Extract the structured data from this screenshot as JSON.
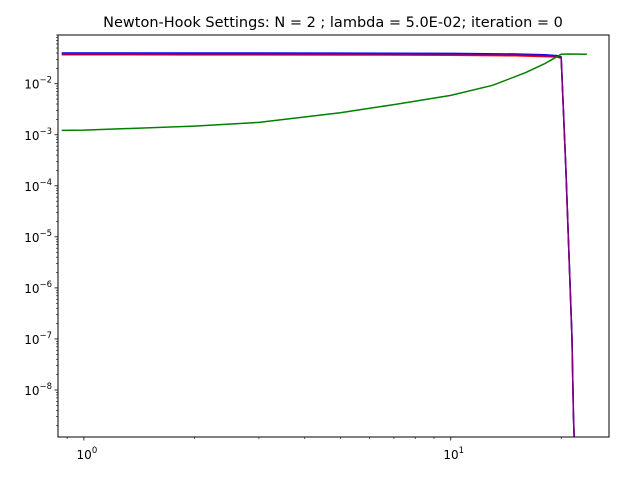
{
  "chart_data": {
    "type": "line",
    "title": "Newton-Hook Settings: N = 2 ; lambda = 5.0E-02; iteration = 0",
    "xlabel": "",
    "ylabel": "",
    "xscale": "log",
    "yscale": "log",
    "xlim": [
      0.85,
      27
    ],
    "ylim": [
      1.2e-09,
      0.09
    ],
    "grid": false,
    "x_ticks": [
      {
        "value": 1,
        "base": "10",
        "exp": "0"
      },
      {
        "value": 10,
        "base": "10",
        "exp": "1"
      }
    ],
    "y_ticks": [
      {
        "value": 0.01,
        "base": "10",
        "exp": "−2"
      },
      {
        "value": 0.001,
        "base": "10",
        "exp": "−3"
      },
      {
        "value": 0.0001,
        "base": "10",
        "exp": "−4"
      },
      {
        "value": 1e-05,
        "base": "10",
        "exp": "−5"
      },
      {
        "value": 1e-06,
        "base": "10",
        "exp": "−6"
      },
      {
        "value": 1e-07,
        "base": "10",
        "exp": "−7"
      },
      {
        "value": 1e-08,
        "base": "10",
        "exp": "−8"
      }
    ],
    "series": [
      {
        "color": "#ff0000",
        "x": [
          0.87,
          1,
          2,
          5,
          10,
          15,
          18,
          19.5,
          20,
          20.6,
          21.4,
          21.6,
          21.7
        ],
        "y": [
          0.037,
          0.037,
          0.0368,
          0.0366,
          0.0362,
          0.0352,
          0.034,
          0.0333,
          0.0315,
          0.0002,
          1e-07,
          3e-09,
          1.2e-09
        ]
      },
      {
        "color": "#0000ff",
        "x": [
          0.87,
          1,
          2,
          5,
          10,
          15,
          18,
          19.5,
          20,
          20.6,
          21.4,
          21.6,
          21.7
        ],
        "y": [
          0.04,
          0.04,
          0.0399,
          0.0398,
          0.0393,
          0.0382,
          0.037,
          0.0355,
          0.0335,
          0.00021,
          1.1e-07,
          3.2e-09,
          1.2e-09
        ]
      },
      {
        "color": "#800080",
        "x": [
          0.87,
          1,
          2,
          5,
          10,
          15,
          18,
          19.5,
          20,
          20.6,
          21.4,
          21.6,
          21.7
        ],
        "y": [
          0.0385,
          0.0385,
          0.0383,
          0.0382,
          0.0378,
          0.0367,
          0.0355,
          0.0344,
          0.0325,
          0.000205,
          1.05e-07,
          3.1e-09,
          1.2e-09
        ]
      },
      {
        "color": "#008000",
        "x": [
          0.87,
          1,
          2,
          3,
          5,
          7,
          10,
          13,
          16,
          18,
          19.5,
          20,
          21,
          23.5
        ],
        "y": [
          0.00122,
          0.00123,
          0.00148,
          0.00175,
          0.0027,
          0.0039,
          0.0059,
          0.0093,
          0.0165,
          0.0245,
          0.034,
          0.0378,
          0.0382,
          0.0378
        ]
      }
    ]
  }
}
